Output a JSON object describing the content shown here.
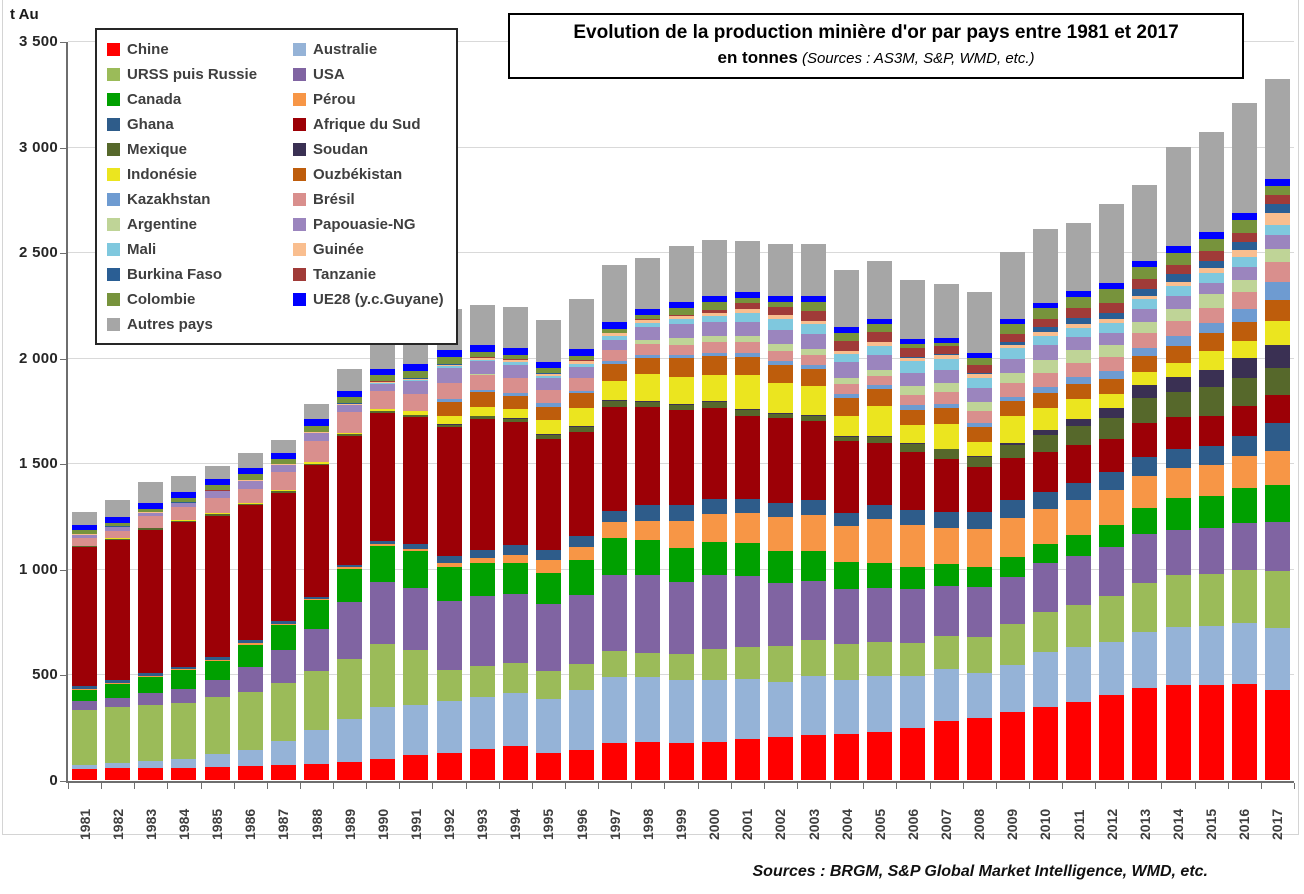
{
  "title": {
    "line1": "Evolution de la production minière d'or par pays entre 1981 et 2017",
    "line2_bold": "en tonnes",
    "line2_source": " (Sources : AS3M, S&P, WMD, etc.)"
  },
  "footer": {
    "text": "Sources : BRGM, S&P Global Market Intelligence, WMD, etc."
  },
  "y_axis": {
    "unit_label": "t Au",
    "tick_labels": [
      "0",
      "500",
      "1 000",
      "1 500",
      "2 000",
      "2 500",
      "3 000",
      "3 500"
    ],
    "tick_values": [
      0,
      500,
      1000,
      1500,
      2000,
      2500,
      3000,
      3500
    ]
  },
  "colors": {
    "grid": "#d9d9d9",
    "axis": "#6e6e6e"
  },
  "chart_data": {
    "type": "bar",
    "stacked": true,
    "title": "Evolution de la production minière d'or par pays entre 1981 et 2017 (en tonnes)",
    "xlabel": "",
    "ylabel": "t Au",
    "ylim": [
      0,
      3500
    ],
    "grid": true,
    "legend_position": "top-left",
    "x": [
      1981,
      1982,
      1983,
      1984,
      1985,
      1986,
      1987,
      1988,
      1989,
      1990,
      1991,
      1992,
      1993,
      1994,
      1995,
      1996,
      1997,
      1998,
      1999,
      2000,
      2001,
      2002,
      2003,
      2004,
      2005,
      2006,
      2007,
      2008,
      2009,
      2010,
      2011,
      2012,
      2013,
      2014,
      2015,
      2016,
      2017
    ],
    "series": [
      {
        "name": "Chine",
        "color": "#FF0000",
        "values": [
          53,
          55,
          57,
          59,
          62,
          67,
          73,
          78,
          86,
          100,
          120,
          130,
          145,
          160,
          130,
          140,
          175,
          178,
          173,
          180,
          193,
          202,
          213,
          217,
          229,
          247,
          280,
          292,
          324,
          345,
          371,
          403,
          438,
          452,
          450,
          455,
          426
        ]
      },
      {
        "name": "Australie",
        "color": "#95B3D7",
        "values": [
          18,
          27,
          31,
          39,
          59,
          75,
          111,
          157,
          204,
          244,
          234,
          243,
          247,
          254,
          254,
          285,
          311,
          310,
          299,
          296,
          285,
          264,
          282,
          259,
          263,
          245,
          245,
          215,
          222,
          261,
          258,
          250,
          265,
          274,
          279,
          288,
          295
        ]
      },
      {
        "name": "URSS puis Russie",
        "color": "#9BBB59",
        "values": [
          260,
          263,
          266,
          269,
          272,
          275,
          277,
          280,
          285,
          302,
          260,
          146,
          150,
          142,
          132,
          123,
          125,
          115,
          126,
          143,
          152,
          171,
          170,
          169,
          163,
          159,
          157,
          172,
          191,
          192,
          200,
          218,
          230,
          247,
          249,
          253,
          270
        ]
      },
      {
        "name": "USA",
        "color": "#8064A2",
        "values": [
          43,
          45,
          60,
          66,
          79,
          118,
          154,
          201,
          266,
          294,
          296,
          330,
          331,
          327,
          317,
          326,
          362,
          366,
          341,
          353,
          335,
          298,
          277,
          258,
          256,
          252,
          238,
          233,
          223,
          231,
          234,
          235,
          230,
          210,
          214,
          222,
          230
        ]
      },
      {
        "name": "Canada",
        "color": "#00A000",
        "values": [
          52,
          66,
          73,
          86,
          90,
          106,
          117,
          135,
          160,
          167,
          175,
          161,
          153,
          146,
          150,
          166,
          172,
          166,
          158,
          156,
          160,
          152,
          141,
          129,
          119,
          104,
          102,
          95,
          97,
          91,
          97,
          104,
          124,
          152,
          153,
          165,
          176
        ]
      },
      {
        "name": "Pérou",
        "color": "#F79646",
        "values": [
          5,
          5,
          6,
          6,
          7,
          8,
          8,
          6,
          6,
          9,
          9,
          18,
          27,
          39,
          57,
          65,
          77,
          94,
          128,
          133,
          138,
          157,
          172,
          173,
          208,
          203,
          170,
          180,
          182,
          164,
          166,
          162,
          152,
          141,
          147,
          153,
          162
        ]
      },
      {
        "name": "Ghana",
        "color": "#2E5C8A",
        "values": [
          13,
          12,
          12,
          12,
          12,
          12,
          12,
          12,
          13,
          17,
          26,
          31,
          39,
          44,
          52,
          49,
          54,
          73,
          78,
          72,
          69,
          70,
          71,
          58,
          63,
          70,
          77,
          81,
          86,
          82,
          80,
          87,
          90,
          91,
          88,
          95,
          130
        ]
      },
      {
        "name": "Afrique du Sud",
        "color": "#9C0006",
        "values": [
          658,
          664,
          680,
          683,
          672,
          640,
          607,
          621,
          608,
          605,
          601,
          614,
          620,
          584,
          524,
          495,
          492,
          464,
          450,
          431,
          394,
          399,
          376,
          342,
          295,
          272,
          253,
          213,
          198,
          189,
          181,
          154,
          160,
          152,
          145,
          142,
          137
        ]
      },
      {
        "name": "Mexique",
        "color": "#56682B",
        "values": [
          6,
          7,
          7,
          8,
          8,
          8,
          8,
          9,
          9,
          9,
          9,
          10,
          10,
          14,
          20,
          24,
          26,
          26,
          23,
          26,
          26,
          21,
          20,
          22,
          30,
          39,
          44,
          51,
          62,
          79,
          89,
          103,
          120,
          118,
          135,
          133,
          126
        ]
      },
      {
        "name": "Soudan",
        "color": "#3A3053",
        "values": [
          0,
          0,
          0,
          0,
          0,
          0,
          0,
          0,
          0,
          1,
          1,
          2,
          2,
          3,
          5,
          5,
          5,
          5,
          5,
          5,
          5,
          5,
          5,
          5,
          5,
          4,
          3,
          3,
          10,
          23,
          33,
          44,
          64,
          70,
          82,
          93,
          107
        ]
      },
      {
        "name": "Indonésie",
        "color": "#EBE51F",
        "values": [
          2,
          2,
          2,
          2,
          3,
          4,
          5,
          6,
          8,
          11,
          17,
          38,
          42,
          43,
          64,
          83,
          90,
          124,
          129,
          125,
          163,
          140,
          141,
          93,
          143,
          85,
          118,
          64,
          130,
          106,
          96,
          69,
          60,
          69,
          92,
          81,
          114
        ]
      },
      {
        "name": "Ouzbékistan",
        "color": "#BE5D0C",
        "values": [
          0,
          0,
          0,
          0,
          0,
          0,
          0,
          0,
          0,
          0,
          0,
          70,
          70,
          64,
          64,
          71,
          82,
          80,
          88,
          88,
          86,
          88,
          80,
          84,
          79,
          75,
          75,
          72,
          70,
          71,
          71,
          73,
          77,
          81,
          83,
          88,
          102
        ]
      },
      {
        "name": "Kazakhstan",
        "color": "#6E9BD1",
        "values": [
          0,
          0,
          0,
          0,
          0,
          0,
          0,
          0,
          0,
          0,
          0,
          12,
          13,
          13,
          15,
          12,
          12,
          12,
          16,
          17,
          17,
          18,
          18,
          18,
          18,
          20,
          20,
          20,
          21,
          27,
          33,
          36,
          38,
          45,
          49,
          64,
          85
        ]
      },
      {
        "name": "Brésil",
        "color": "#D98F8D",
        "values": [
          35,
          35,
          55,
          62,
          72,
          67,
          85,
          102,
          100,
          84,
          80,
          77,
          72,
          71,
          63,
          58,
          52,
          50,
          48,
          50,
          51,
          48,
          48,
          48,
          45,
          49,
          58,
          59,
          65,
          67,
          67,
          67,
          70,
          71,
          72,
          80,
          92
        ]
      },
      {
        "name": "Argentine",
        "color": "#BFD497",
        "values": [
          0,
          0,
          0,
          0,
          0,
          0,
          0,
          0,
          0,
          1,
          1,
          1,
          1,
          1,
          1,
          1,
          3,
          20,
          34,
          26,
          31,
          33,
          30,
          28,
          28,
          44,
          42,
          40,
          49,
          64,
          59,
          55,
          50,
          60,
          64,
          58,
          64
        ]
      },
      {
        "name": "Papouasie-NG",
        "color": "#9B85BE",
        "values": [
          17,
          18,
          18,
          19,
          31,
          36,
          34,
          37,
          33,
          32,
          61,
          71,
          61,
          60,
          55,
          53,
          47,
          61,
          63,
          67,
          67,
          64,
          68,
          75,
          69,
          58,
          62,
          67,
          66,
          68,
          63,
          57,
          62,
          59,
          54,
          62,
          64
        ]
      },
      {
        "name": "Mali",
        "color": "#7FC8DE",
        "values": [
          0,
          0,
          0,
          0,
          0,
          0,
          0,
          0,
          0,
          4,
          5,
          6,
          8,
          15,
          13,
          17,
          19,
          21,
          24,
          29,
          42,
          56,
          46,
          40,
          44,
          57,
          52,
          47,
          49,
          44,
          44,
          50,
          48,
          47,
          47,
          47,
          50
        ]
      },
      {
        "name": "Guinée",
        "color": "#F9BE8F",
        "values": [
          2,
          2,
          2,
          3,
          3,
          4,
          4,
          4,
          5,
          6,
          7,
          8,
          8,
          9,
          10,
          11,
          12,
          13,
          14,
          15,
          16,
          17,
          16,
          15,
          17,
          18,
          18,
          19,
          18,
          18,
          16,
          16,
          17,
          20,
          21,
          30,
          55
        ]
      },
      {
        "name": "Burkina Faso",
        "color": "#2A5E94",
        "values": [
          1,
          1,
          1,
          1,
          1,
          1,
          1,
          1,
          1,
          1,
          1,
          1,
          1,
          1,
          1,
          1,
          1,
          1,
          1,
          1,
          1,
          1,
          1,
          1,
          1,
          2,
          2,
          5,
          12,
          23,
          32,
          30,
          33,
          36,
          36,
          39,
          45
        ]
      },
      {
        "name": "Tanzanie",
        "color": "#A03B38",
        "values": [
          1,
          1,
          1,
          1,
          1,
          1,
          1,
          1,
          1,
          2,
          2,
          3,
          3,
          3,
          3,
          3,
          3,
          4,
          5,
          15,
          30,
          39,
          45,
          48,
          49,
          45,
          40,
          36,
          39,
          39,
          44,
          49,
          47,
          46,
          46,
          45,
          43
        ]
      },
      {
        "name": "Colombie",
        "color": "#77933C",
        "values": [
          17,
          15,
          14,
          21,
          26,
          27,
          26,
          29,
          29,
          29,
          35,
          32,
          27,
          21,
          21,
          22,
          19,
          19,
          35,
          37,
          22,
          21,
          46,
          38,
          36,
          16,
          16,
          34,
          48,
          54,
          56,
          66,
          55,
          57,
          59,
          62,
          41
        ]
      },
      {
        "name": "UE28 (y.c.Guyane)",
        "color": "#0000FF",
        "values": [
          25,
          26,
          26,
          27,
          27,
          28,
          28,
          29,
          30,
          30,
          31,
          31,
          31,
          31,
          30,
          30,
          30,
          30,
          29,
          30,
          29,
          28,
          28,
          27,
          26,
          25,
          24,
          23,
          23,
          24,
          26,
          28,
          30,
          31,
          32,
          33,
          35
        ]
      },
      {
        "name": "Autres pays",
        "color": "#A6A6A6",
        "values": [
          60,
          85,
          100,
          78,
          65,
          73,
          60,
          72,
          105,
          160,
          150,
          195,
          190,
          195,
          200,
          240,
          270,
          240,
          265,
          265,
          240,
          250,
          245,
          270,
          275,
          280,
          255,
          290,
          315,
          350,
          325,
          375,
          360,
          470,
          475,
          520,
          470
        ]
      }
    ]
  }
}
